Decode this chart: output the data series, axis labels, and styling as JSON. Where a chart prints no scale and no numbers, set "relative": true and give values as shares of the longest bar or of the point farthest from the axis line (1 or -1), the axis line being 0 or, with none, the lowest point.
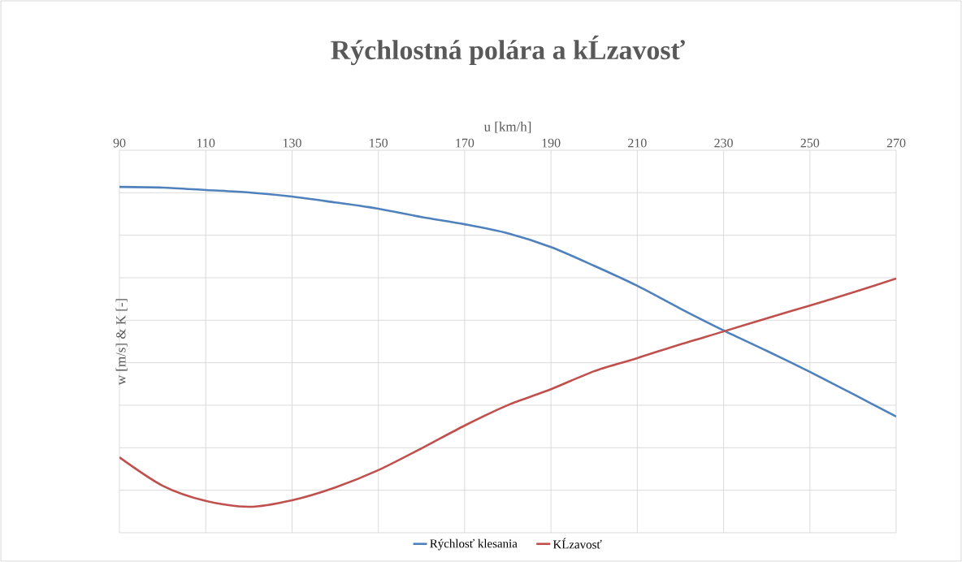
{
  "chart_data": {
    "type": "line",
    "title": "Rýchlostná polára a kĹzavosť",
    "xlabel": "u [km/h]",
    "ylabel": "w [m/s] & K [-]",
    "x": [
      90,
      100,
      110,
      120,
      130,
      140,
      150,
      160,
      170,
      180,
      190,
      200,
      210,
      220,
      230,
      240,
      250,
      260,
      270
    ],
    "xlim": [
      90,
      270
    ],
    "xticks": [
      90,
      110,
      130,
      150,
      170,
      190,
      210,
      230,
      250,
      270
    ],
    "relative": true,
    "grid": true,
    "legend": "bottom",
    "marker": "none",
    "line_style": "solid",
    "series": [
      {
        "name": "Rýchlosť klesania",
        "color": "#4f81bd",
        "values": [
          1.0,
          0.998,
          0.991,
          0.984,
          0.972,
          0.955,
          0.937,
          0.913,
          0.892,
          0.866,
          0.826,
          0.772,
          0.714,
          0.648,
          0.585,
          0.526,
          0.465,
          0.401,
          0.336
        ]
      },
      {
        "name": "KĹzavosť",
        "color": "#c0504d",
        "values": [
          0.218,
          0.136,
          0.092,
          0.075,
          0.094,
          0.131,
          0.181,
          0.244,
          0.31,
          0.369,
          0.415,
          0.467,
          0.505,
          0.545,
          0.582,
          0.62,
          0.657,
          0.695,
          0.735
        ]
      }
    ]
  }
}
